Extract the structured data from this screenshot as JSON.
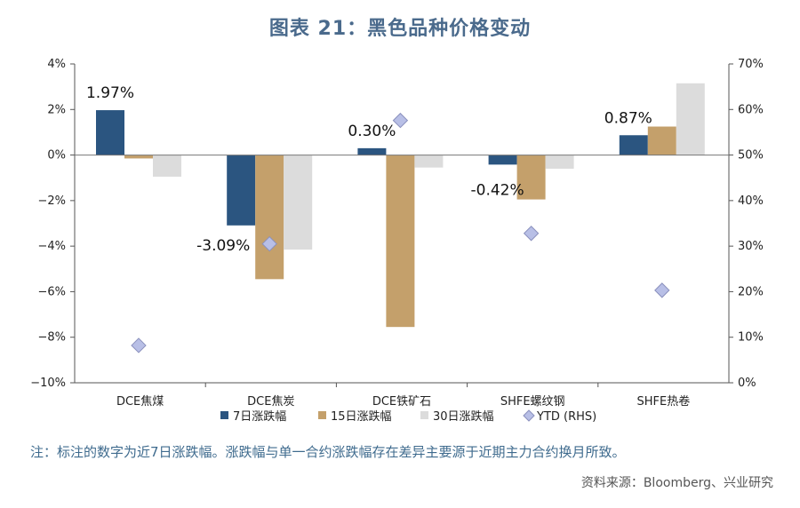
{
  "header": {
    "title": "图表 21：黑色品种价格变动"
  },
  "chart_data": {
    "type": "bar",
    "title": "图表 21：黑色品种价格变动",
    "categories": [
      "DCE焦煤",
      "DCE焦炭",
      "DCE铁矿石",
      "SHFE螺纹钢",
      "SHFE热卷"
    ],
    "series": [
      {
        "name": "7日涨跌幅",
        "axis": "left",
        "color": "#2b5580",
        "values": [
          1.97,
          -3.09,
          0.3,
          -0.42,
          0.87
        ]
      },
      {
        "name": "15日涨跌幅",
        "axis": "left",
        "color": "#c4a06b",
        "values": [
          -0.15,
          -5.45,
          -7.55,
          -1.95,
          1.25
        ]
      },
      {
        "name": "30日涨跌幅",
        "axis": "left",
        "color": "#dcdcdc",
        "values": [
          -0.95,
          -4.15,
          -0.55,
          -0.6,
          3.15
        ]
      }
    ],
    "scatter": {
      "name": "YTD (RHS)",
      "axis": "right",
      "color": "#b8bfe6",
      "edge": "#8a90bd",
      "values": [
        8.2,
        30.5,
        57.6,
        32.8,
        20.3
      ]
    },
    "y_left": {
      "min": -10,
      "max": 4,
      "step": 2,
      "suffix": "%",
      "ticks": [
        "4%",
        "2%",
        "0%",
        "−2%",
        "−4%",
        "−6%",
        "−8%",
        "−10%"
      ]
    },
    "y_right": {
      "min": 0,
      "max": 70,
      "step": 10,
      "suffix": "%",
      "ticks": [
        "70%",
        "60%",
        "50%",
        "40%",
        "30%",
        "20%",
        "10%",
        "0%"
      ]
    },
    "data_labels": [
      "1.97%",
      "-3.09%",
      "0.30%",
      "-0.42%",
      "0.87%"
    ],
    "legend": [
      "7日涨跌幅",
      "15日涨跌幅",
      "30日涨跌幅",
      "YTD (RHS)"
    ],
    "legend_position": "bottom"
  },
  "footer": {
    "note": "注：标注的数字为近7日涨跌幅。涨跌幅与单一合约涨跌幅存在差异主要源于近期主力合约换月所致。",
    "source": "资料来源：Bloomberg、兴业研究"
  }
}
